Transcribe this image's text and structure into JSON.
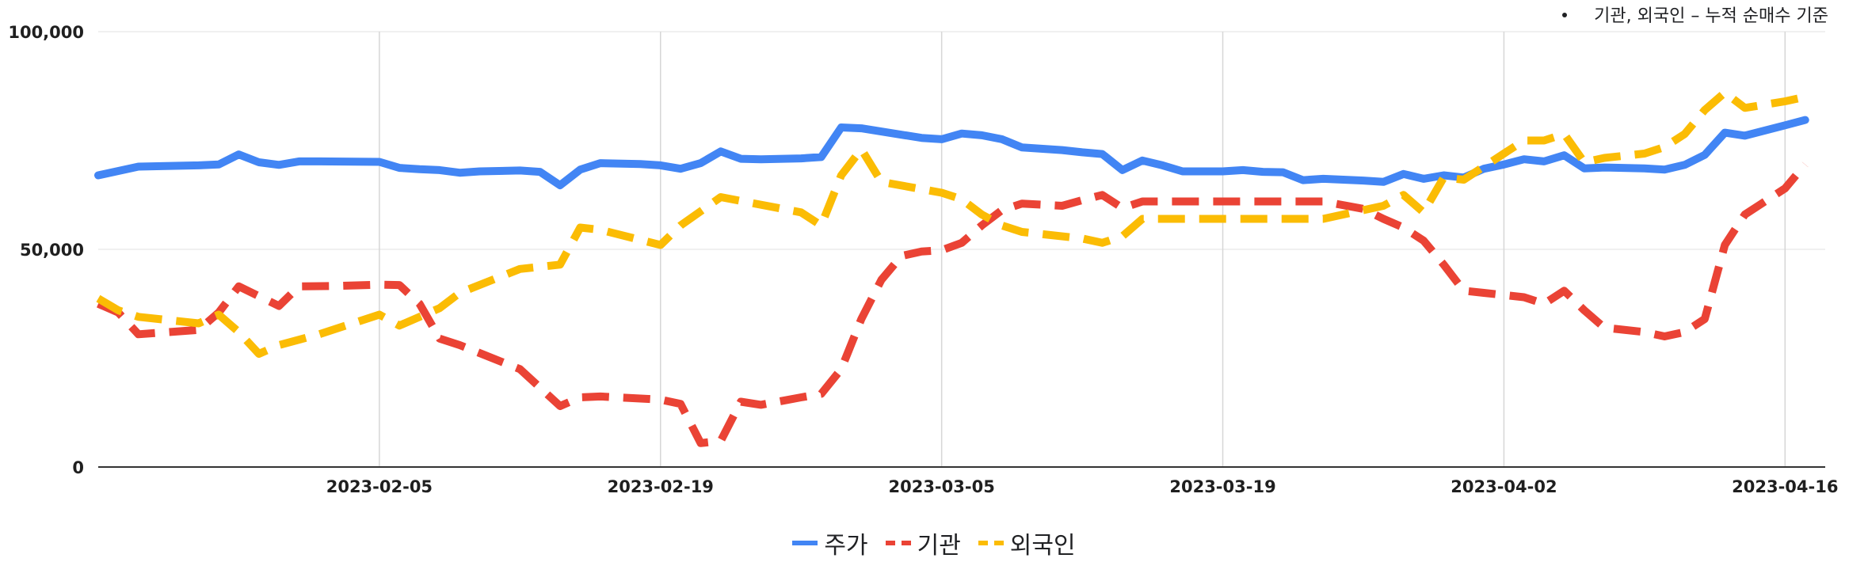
{
  "note": "기관, 외국인 – 누적 순매수 기준",
  "chart_data": {
    "type": "line",
    "title": "",
    "xlabel": "",
    "ylabel": "",
    "x_range": [
      "2023-01-22",
      "2023-04-18"
    ],
    "ylim": [
      0,
      100000
    ],
    "y_ticks": [
      {
        "value": 0,
        "label": "0"
      },
      {
        "value": 50000,
        "label": "50,000"
      },
      {
        "value": 100000,
        "label": "100,000"
      }
    ],
    "x_ticks": [
      "2023-02-05",
      "2023-02-19",
      "2023-03-05",
      "2023-03-19",
      "2023-04-02",
      "2023-04-16"
    ],
    "grid": true,
    "legend_position": "bottom",
    "series": [
      {
        "name": "주가",
        "color": "#4285F4",
        "dash": "solid",
        "points": [
          [
            "2023-01-22",
            67000
          ],
          [
            "2023-01-24",
            69000
          ],
          [
            "2023-01-27",
            69300
          ],
          [
            "2023-01-28",
            69500
          ],
          [
            "2023-01-29",
            71800
          ],
          [
            "2023-01-30",
            70000
          ],
          [
            "2023-01-31",
            69400
          ],
          [
            "2023-02-01",
            70200
          ],
          [
            "2023-02-02",
            70200
          ],
          [
            "2023-02-05",
            70100
          ],
          [
            "2023-02-06",
            68700
          ],
          [
            "2023-02-07",
            68400
          ],
          [
            "2023-02-08",
            68200
          ],
          [
            "2023-02-09",
            67600
          ],
          [
            "2023-02-10",
            67900
          ],
          [
            "2023-02-12",
            68100
          ],
          [
            "2023-02-13",
            67800
          ],
          [
            "2023-02-14",
            64700
          ],
          [
            "2023-02-15",
            68300
          ],
          [
            "2023-02-16",
            69800
          ],
          [
            "2023-02-18",
            69600
          ],
          [
            "2023-02-19",
            69300
          ],
          [
            "2023-02-20",
            68500
          ],
          [
            "2023-02-21",
            69800
          ],
          [
            "2023-02-22",
            72500
          ],
          [
            "2023-02-23",
            70800
          ],
          [
            "2023-02-24",
            70700
          ],
          [
            "2023-02-26",
            70900
          ],
          [
            "2023-02-27",
            71200
          ],
          [
            "2023-02-28",
            78000
          ],
          [
            "2023-03-01",
            77800
          ],
          [
            "2023-03-04",
            75600
          ],
          [
            "2023-03-05",
            75300
          ],
          [
            "2023-03-06",
            76600
          ],
          [
            "2023-03-07",
            76200
          ],
          [
            "2023-03-08",
            75300
          ],
          [
            "2023-03-09",
            73400
          ],
          [
            "2023-03-11",
            72800
          ],
          [
            "2023-03-12",
            72300
          ],
          [
            "2023-03-13",
            71900
          ],
          [
            "2023-03-14",
            68200
          ],
          [
            "2023-03-15",
            70400
          ],
          [
            "2023-03-16",
            69300
          ],
          [
            "2023-03-17",
            67900
          ],
          [
            "2023-03-19",
            67900
          ],
          [
            "2023-03-20",
            68200
          ],
          [
            "2023-03-21",
            67800
          ],
          [
            "2023-03-22",
            67700
          ],
          [
            "2023-03-23",
            65900
          ],
          [
            "2023-03-24",
            66200
          ],
          [
            "2023-03-26",
            65800
          ],
          [
            "2023-03-27",
            65500
          ],
          [
            "2023-03-28",
            67300
          ],
          [
            "2023-03-29",
            66200
          ],
          [
            "2023-03-30",
            67000
          ],
          [
            "2023-03-31",
            66500
          ],
          [
            "2023-04-01",
            68500
          ],
          [
            "2023-04-02",
            69500
          ],
          [
            "2023-04-03",
            70700
          ],
          [
            "2023-04-04",
            70200
          ],
          [
            "2023-04-05",
            71600
          ],
          [
            "2023-04-06",
            68600
          ],
          [
            "2023-04-07",
            68800
          ],
          [
            "2023-04-09",
            68600
          ],
          [
            "2023-04-10",
            68300
          ],
          [
            "2023-04-11",
            69400
          ],
          [
            "2023-04-12",
            71700
          ],
          [
            "2023-04-13",
            76800
          ],
          [
            "2023-04-14",
            76100
          ],
          [
            "2023-04-16",
            78500
          ],
          [
            "2023-04-17",
            79700
          ]
        ]
      },
      {
        "name": "기관",
        "color": "#EA4335",
        "dash": "dashed",
        "points": [
          [
            "2023-01-22",
            37500
          ],
          [
            "2023-01-23",
            35500
          ],
          [
            "2023-01-24",
            30500
          ],
          [
            "2023-01-27",
            31500
          ],
          [
            "2023-01-28",
            35500
          ],
          [
            "2023-01-29",
            41500
          ],
          [
            "2023-01-31",
            37000
          ],
          [
            "2023-02-01",
            41500
          ],
          [
            "2023-02-03",
            41600
          ],
          [
            "2023-02-05",
            41900
          ],
          [
            "2023-02-06",
            41800
          ],
          [
            "2023-02-07",
            37500
          ],
          [
            "2023-02-08",
            29500
          ],
          [
            "2023-02-09",
            28000
          ],
          [
            "2023-02-12",
            22500
          ],
          [
            "2023-02-14",
            14000
          ],
          [
            "2023-02-15",
            16000
          ],
          [
            "2023-02-16",
            16200
          ],
          [
            "2023-02-19",
            15500
          ],
          [
            "2023-02-20",
            14500
          ],
          [
            "2023-02-21",
            5500
          ],
          [
            "2023-02-22",
            6000
          ],
          [
            "2023-02-23",
            15000
          ],
          [
            "2023-02-24",
            14300
          ],
          [
            "2023-02-26",
            16000
          ],
          [
            "2023-02-27",
            16800
          ],
          [
            "2023-02-28",
            22500
          ],
          [
            "2023-03-01",
            34000
          ],
          [
            "2023-03-02",
            43000
          ],
          [
            "2023-03-03",
            48500
          ],
          [
            "2023-03-04",
            49500
          ],
          [
            "2023-03-05",
            49800
          ],
          [
            "2023-03-06",
            51500
          ],
          [
            "2023-03-07",
            55500
          ],
          [
            "2023-03-08",
            59000
          ],
          [
            "2023-03-09",
            60500
          ],
          [
            "2023-03-11",
            60000
          ],
          [
            "2023-03-12",
            61300
          ],
          [
            "2023-03-13",
            62500
          ],
          [
            "2023-03-14",
            59500
          ],
          [
            "2023-03-15",
            61000
          ],
          [
            "2023-03-19",
            61000
          ],
          [
            "2023-03-22",
            61000
          ],
          [
            "2023-03-23",
            61000
          ],
          [
            "2023-03-24",
            61000
          ],
          [
            "2023-03-26",
            59300
          ],
          [
            "2023-03-27",
            57000
          ],
          [
            "2023-03-28",
            55000
          ],
          [
            "2023-03-29",
            52000
          ],
          [
            "2023-03-30",
            46500
          ],
          [
            "2023-03-31",
            40500
          ],
          [
            "2023-04-01",
            40000
          ],
          [
            "2023-04-03",
            39000
          ],
          [
            "2023-04-04",
            37500
          ],
          [
            "2023-04-05",
            40500
          ],
          [
            "2023-04-06",
            36000
          ],
          [
            "2023-04-07",
            32000
          ],
          [
            "2023-04-09",
            31000
          ],
          [
            "2023-04-10",
            30000
          ],
          [
            "2023-04-11",
            31000
          ],
          [
            "2023-04-12",
            34000
          ],
          [
            "2023-04-13",
            51000
          ],
          [
            "2023-04-14",
            58000
          ],
          [
            "2023-04-16",
            64000
          ],
          [
            "2023-04-17",
            69500
          ]
        ]
      },
      {
        "name": "외국인",
        "color": "#FBBC04",
        "dash": "dashed",
        "points": [
          [
            "2023-01-22",
            38700
          ],
          [
            "2023-01-23",
            36000
          ],
          [
            "2023-01-24",
            34500
          ],
          [
            "2023-01-27",
            33000
          ],
          [
            "2023-01-28",
            35000
          ],
          [
            "2023-01-29",
            31000
          ],
          [
            "2023-01-30",
            26000
          ],
          [
            "2023-01-31",
            28000
          ],
          [
            "2023-02-02",
            30500
          ],
          [
            "2023-02-05",
            35000
          ],
          [
            "2023-02-06",
            32500
          ],
          [
            "2023-02-08",
            36500
          ],
          [
            "2023-02-09",
            40000
          ],
          [
            "2023-02-12",
            45500
          ],
          [
            "2023-02-14",
            46500
          ],
          [
            "2023-02-15",
            55000
          ],
          [
            "2023-02-16",
            54500
          ],
          [
            "2023-02-19",
            51000
          ],
          [
            "2023-02-20",
            55500
          ],
          [
            "2023-02-22",
            62000
          ],
          [
            "2023-02-26",
            58500
          ],
          [
            "2023-02-27",
            55500
          ],
          [
            "2023-02-28",
            67000
          ],
          [
            "2023-03-01",
            73000
          ],
          [
            "2023-03-02",
            65500
          ],
          [
            "2023-03-05",
            63000
          ],
          [
            "2023-03-06",
            61500
          ],
          [
            "2023-03-07",
            58000
          ],
          [
            "2023-03-08",
            55500
          ],
          [
            "2023-03-09",
            54000
          ],
          [
            "2023-03-12",
            52500
          ],
          [
            "2023-03-13",
            51500
          ],
          [
            "2023-03-14",
            53000
          ],
          [
            "2023-03-15",
            57000
          ],
          [
            "2023-03-19",
            57000
          ],
          [
            "2023-03-22",
            57000
          ],
          [
            "2023-03-23",
            57000
          ],
          [
            "2023-03-24",
            57000
          ],
          [
            "2023-03-26",
            59000
          ],
          [
            "2023-03-27",
            60000
          ],
          [
            "2023-03-28",
            62500
          ],
          [
            "2023-03-29",
            58500
          ],
          [
            "2023-03-30",
            66500
          ],
          [
            "2023-03-31",
            66000
          ],
          [
            "2023-04-01",
            69000
          ],
          [
            "2023-04-02",
            72000
          ],
          [
            "2023-04-03",
            75000
          ],
          [
            "2023-04-04",
            75000
          ],
          [
            "2023-04-05",
            76500
          ],
          [
            "2023-04-06",
            70000
          ],
          [
            "2023-04-07",
            71000
          ],
          [
            "2023-04-09",
            72000
          ],
          [
            "2023-04-10",
            73500
          ],
          [
            "2023-04-11",
            76500
          ],
          [
            "2023-04-12",
            82000
          ],
          [
            "2023-04-13",
            86000
          ],
          [
            "2023-04-14",
            82500
          ],
          [
            "2023-04-16",
            84000
          ],
          [
            "2023-04-17",
            85000
          ]
        ]
      }
    ]
  }
}
